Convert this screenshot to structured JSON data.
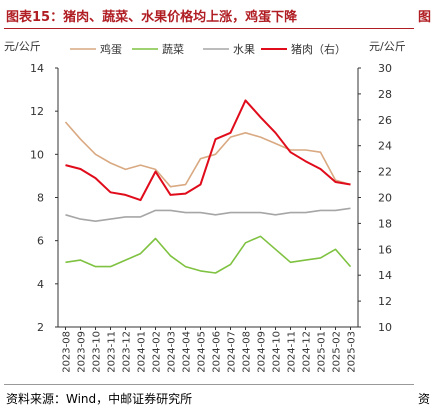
{
  "header": {
    "title": "图表15：猪肉、蔬菜、水果价格均上涨，鸡蛋下降",
    "title_right_fragment": "图"
  },
  "footer": {
    "source": "资料来源：Wind，中邮证券研究所",
    "source_right_fragment": "资"
  },
  "chart_data": {
    "type": "line",
    "title": "",
    "ylabel_left": "元/公斤",
    "ylabel_right": "元/公斤",
    "ylim_left": [
      2,
      14
    ],
    "ylim_right": [
      10,
      30
    ],
    "yticks_left": [
      2,
      4,
      6,
      8,
      10,
      12,
      14
    ],
    "yticks_right": [
      10,
      12,
      14,
      16,
      18,
      20,
      22,
      24,
      26,
      28,
      30
    ],
    "grid": false,
    "legend_position": "top",
    "x": [
      "2023-08",
      "2023-09",
      "2023-10",
      "2023-11",
      "2023-12",
      "2024-01",
      "2024-02",
      "2024-03",
      "2024-04",
      "2024-05",
      "2024-06",
      "2024-07",
      "2024-08",
      "2024-09",
      "2024-10",
      "2024-11",
      "2024-12",
      "2025-01",
      "2025-02",
      "2025-03"
    ],
    "series": [
      {
        "name": "鸡蛋",
        "axis": "left",
        "color": "#d9a982",
        "values": [
          11.5,
          10.7,
          10.0,
          9.6,
          9.3,
          9.5,
          9.3,
          8.5,
          8.6,
          9.8,
          10.0,
          10.8,
          11.0,
          10.8,
          10.5,
          10.2,
          10.2,
          10.1,
          8.8,
          8.6
        ]
      },
      {
        "name": "蔬菜",
        "axis": "left",
        "color": "#7fc241",
        "values": [
          5.0,
          5.1,
          4.8,
          4.8,
          5.1,
          5.4,
          6.1,
          5.3,
          4.8,
          4.6,
          4.5,
          4.9,
          5.9,
          6.2,
          5.6,
          5.0,
          5.1,
          5.2,
          5.6,
          4.8
        ]
      },
      {
        "name": "水果",
        "axis": "left",
        "color": "#a6a6a6",
        "values": [
          7.2,
          7.0,
          6.9,
          7.0,
          7.1,
          7.1,
          7.4,
          7.4,
          7.3,
          7.3,
          7.2,
          7.3,
          7.3,
          7.3,
          7.2,
          7.3,
          7.3,
          7.4,
          7.4,
          7.5
        ]
      },
      {
        "name": "猪肉（右）",
        "axis": "right",
        "color": "#e00c1b",
        "values": [
          22.5,
          22.2,
          21.5,
          20.4,
          20.2,
          19.8,
          22.0,
          20.2,
          20.3,
          21.0,
          24.5,
          25.0,
          27.5,
          26.2,
          25.0,
          23.5,
          22.8,
          22.2,
          21.2,
          21.0
        ]
      }
    ]
  }
}
